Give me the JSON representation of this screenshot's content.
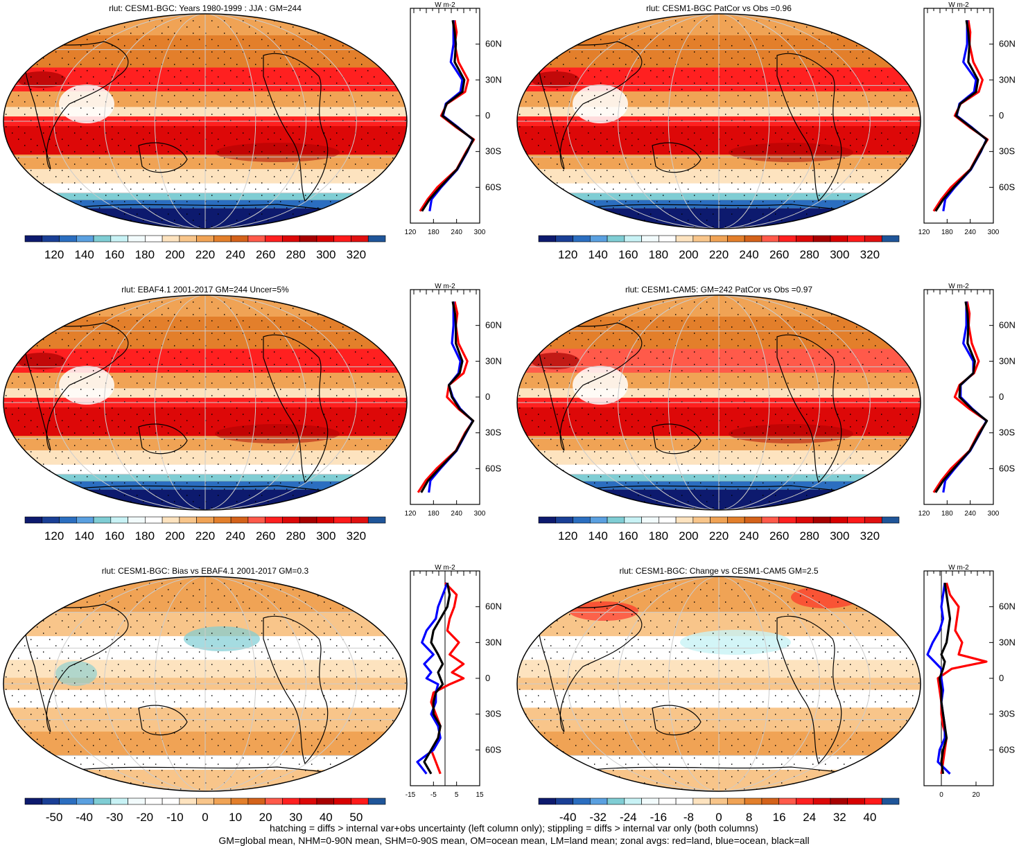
{
  "chart_data": [
    {
      "type": "heatmap",
      "title": "rlut: CESM1-BGC: Years 1980-1999 : JJA : GM=244",
      "colorbar": {
        "ticks": [
          "120",
          "140",
          "160",
          "180",
          "200",
          "220",
          "240",
          "260",
          "280",
          "300",
          "320"
        ],
        "scale": "abs"
      },
      "zonal": {
        "units": "W m-2",
        "xticks": [
          "120",
          "180",
          "240",
          "300"
        ],
        "xlim": [
          120,
          300
        ],
        "lat_labels": [
          "60N",
          "30N",
          "0",
          "30S",
          "60S"
        ],
        "series": [
          {
            "name": "land",
            "color": "#ff0000",
            "lat": [
              80,
              70,
              60,
              45,
              30,
              20,
              10,
              0,
              -10,
              -20,
              -30,
              -45,
              -60,
              -70,
              -80
            ],
            "values": [
              235,
              240,
              235,
              245,
              270,
              262,
              215,
              200,
              240,
              285,
              265,
              240,
              190,
              165,
              145
            ]
          },
          {
            "name": "ocean",
            "color": "#0000ff",
            "lat": [
              80,
              70,
              60,
              45,
              30,
              20,
              10,
              0,
              -10,
              -20,
              -30,
              -45,
              -60,
              -70,
              -80
            ],
            "values": [
              232,
              232,
              232,
              225,
              255,
              250,
              212,
              205,
              245,
              282,
              268,
              242,
              200,
              175,
              170
            ]
          },
          {
            "name": "all",
            "color": "#000000",
            "lat": [
              80,
              70,
              60,
              45,
              30,
              20,
              10,
              0,
              -10,
              -20,
              -30,
              -45,
              -60,
              -70,
              -80
            ],
            "values": [
              230,
              235,
              238,
              235,
              260,
              255,
              214,
              203,
              243,
              283,
              267,
              241,
              197,
              170,
              150
            ]
          }
        ]
      }
    },
    {
      "type": "heatmap",
      "title": "rlut: CESM1-BGC PatCor vs Obs =0.96",
      "colorbar": {
        "ticks": [
          "120",
          "140",
          "160",
          "180",
          "200",
          "220",
          "240",
          "260",
          "280",
          "300",
          "320"
        ],
        "scale": "abs"
      },
      "zonal": {
        "units": "W m-2",
        "xticks": [
          "120",
          "180",
          "240",
          "300"
        ],
        "xlim": [
          120,
          300
        ],
        "lat_labels": [
          "60N",
          "30N",
          "0",
          "30S",
          "60S"
        ],
        "series": [
          {
            "name": "land",
            "color": "#ff0000",
            "lat": [
              80,
              70,
              60,
              45,
              30,
              20,
              10,
              0,
              -10,
              -20,
              -30,
              -45,
              -60,
              -70,
              -80
            ],
            "values": [
              235,
              240,
              238,
              248,
              272,
              262,
              215,
              200,
              240,
              285,
              265,
              240,
              190,
              165,
              145
            ]
          },
          {
            "name": "ocean",
            "color": "#0000ff",
            "lat": [
              80,
              70,
              60,
              45,
              30,
              20,
              10,
              0,
              -10,
              -20,
              -30,
              -45,
              -60,
              -70,
              -80
            ],
            "values": [
              232,
              232,
              232,
              222,
              255,
              250,
              212,
              205,
              245,
              282,
              268,
              242,
              200,
              175,
              170
            ]
          },
          {
            "name": "all",
            "color": "#000000",
            "lat": [
              80,
              70,
              60,
              45,
              30,
              20,
              10,
              0,
              -10,
              -20,
              -30,
              -45,
              -60,
              -70,
              -80
            ],
            "values": [
              230,
              235,
              238,
              235,
              260,
              255,
              214,
              203,
              243,
              283,
              267,
              241,
              197,
              170,
              150
            ]
          }
        ]
      }
    },
    {
      "type": "heatmap",
      "title": "rlut: EBAF4.1 2001-2017 GM=244 Uncer=5%",
      "colorbar": {
        "ticks": [
          "120",
          "140",
          "160",
          "180",
          "200",
          "220",
          "240",
          "260",
          "280",
          "300",
          "320"
        ],
        "scale": "abs"
      },
      "zonal": {
        "units": "W m-2",
        "xticks": [
          "120",
          "180",
          "240",
          "300"
        ],
        "xlim": [
          120,
          300
        ],
        "lat_labels": [
          "60N",
          "30N",
          "0",
          "30S",
          "60S"
        ],
        "series": [
          {
            "name": "land",
            "color": "#ff0000",
            "lat": [
              80,
              70,
              60,
              45,
              30,
              20,
              10,
              0,
              -10,
              -20,
              -30,
              -45,
              -60,
              -70,
              -80
            ],
            "values": [
              235,
              242,
              238,
              245,
              268,
              258,
              220,
              215,
              245,
              283,
              262,
              238,
              188,
              160,
              140
            ]
          },
          {
            "name": "ocean",
            "color": "#0000ff",
            "lat": [
              80,
              70,
              60,
              45,
              30,
              20,
              10,
              0,
              -10,
              -20,
              -30,
              -45,
              -60,
              -70,
              -80
            ],
            "values": [
              232,
              232,
              232,
              228,
              250,
              245,
              220,
              230,
              250,
              282,
              265,
              240,
              198,
              172,
              168
            ]
          },
          {
            "name": "all",
            "color": "#000000",
            "lat": [
              80,
              70,
              60,
              45,
              30,
              20,
              10,
              0,
              -10,
              -20,
              -30,
              -45,
              -60,
              -70,
              -80
            ],
            "values": [
              230,
              236,
              238,
              238,
              255,
              248,
              220,
              228,
              248,
              283,
              264,
              239,
              195,
              166,
              148
            ]
          }
        ]
      }
    },
    {
      "type": "heatmap",
      "title": "rlut: CESM1-CAM5: GM=242 PatCor vs Obs =0.97",
      "colorbar": {
        "ticks": [
          "120",
          "140",
          "160",
          "180",
          "200",
          "220",
          "240",
          "260",
          "280",
          "300",
          "320"
        ],
        "scale": "abs"
      },
      "zonal": {
        "units": "W m-2",
        "xticks": [
          "120",
          "180",
          "240",
          "300"
        ],
        "xlim": [
          120,
          300
        ],
        "lat_labels": [
          "60N",
          "30N",
          "0",
          "30S",
          "60S"
        ],
        "series": [
          {
            "name": "land",
            "color": "#ff0000",
            "lat": [
              80,
              70,
              60,
              45,
              30,
              20,
              10,
              0,
              -10,
              -20,
              -30,
              -45,
              -60,
              -70,
              -80
            ],
            "values": [
              232,
              238,
              236,
              244,
              262,
              250,
              212,
              200,
              238,
              283,
              262,
              238,
              190,
              165,
              145
            ]
          },
          {
            "name": "ocean",
            "color": "#0000ff",
            "lat": [
              80,
              70,
              60,
              45,
              30,
              20,
              10,
              0,
              -10,
              -20,
              -30,
              -45,
              -60,
              -70,
              -80
            ],
            "values": [
              230,
              230,
              230,
              222,
              248,
              248,
              215,
              215,
              246,
              282,
              266,
              240,
              200,
              175,
              170
            ]
          },
          {
            "name": "all",
            "color": "#000000",
            "lat": [
              80,
              70,
              60,
              45,
              30,
              20,
              10,
              0,
              -10,
              -20,
              -30,
              -45,
              -60,
              -70,
              -80
            ],
            "values": [
              228,
              233,
              235,
              233,
              252,
              248,
              214,
              212,
              244,
              283,
              265,
              239,
              197,
              170,
              150
            ]
          }
        ]
      }
    },
    {
      "type": "heatmap",
      "title": "rlut: CESM1-BGC: Bias vs EBAF4.1 2001-2017 GM=0.3",
      "colorbar": {
        "ticks": [
          "-50",
          "-40",
          "-30",
          "-20",
          "-10",
          "0",
          "10",
          "20",
          "30",
          "40",
          "50"
        ],
        "scale": "diff"
      },
      "zonal": {
        "units": "W m-2",
        "xticks": [
          "-15",
          "-5",
          "5",
          "15"
        ],
        "xlim": [
          -15,
          15
        ],
        "lat_labels": [
          "60N",
          "30N",
          "0",
          "30S",
          "60S"
        ],
        "series": [
          {
            "name": "land",
            "color": "#ff0000",
            "lat": [
              80,
              70,
              60,
              50,
              40,
              30,
              20,
              12,
              5,
              0,
              -5,
              -12,
              -20,
              -30,
              -40,
              -50,
              -60,
              -70,
              -80
            ],
            "values": [
              0,
              5,
              4,
              2,
              1,
              6,
              2,
              8,
              3,
              8,
              2,
              -5,
              -6,
              -4,
              -2,
              -3,
              -6,
              -4,
              -2
            ]
          },
          {
            "name": "ocean",
            "color": "#0000ff",
            "lat": [
              80,
              70,
              60,
              50,
              40,
              30,
              20,
              12,
              5,
              0,
              -5,
              -12,
              -20,
              -30,
              -40,
              -50,
              -60,
              -70,
              -80
            ],
            "values": [
              1,
              -1,
              -3,
              -4,
              -8,
              -10,
              -5,
              -9,
              -6,
              -8,
              -3,
              -4,
              -4,
              -6,
              -3,
              -2,
              -5,
              -12,
              -8
            ]
          },
          {
            "name": "all",
            "color": "#000000",
            "lat": [
              80,
              70,
              60,
              50,
              40,
              30,
              20,
              12,
              5,
              0,
              -5,
              -12,
              -20,
              -30,
              -40,
              -50,
              -60,
              -70,
              -80
            ],
            "values": [
              1,
              2,
              1,
              -2,
              -5,
              -6,
              -3,
              -1,
              -3,
              -2,
              -1,
              -4,
              -5,
              -5,
              -2,
              -3,
              -6,
              -9,
              -6
            ]
          }
        ]
      }
    },
    {
      "type": "heatmap",
      "title": "rlut: CESM1-BGC: Change vs CESM1-CAM5 GM=2.5",
      "colorbar": {
        "ticks": [
          "-40",
          "-32",
          "-24",
          "-16",
          "-8",
          "0",
          "8",
          "16",
          "24",
          "32",
          "40"
        ],
        "scale": "diff"
      },
      "zonal": {
        "units": "W m-2",
        "xticks": [
          "0",
          "20"
        ],
        "xlim": [
          -10,
          30
        ],
        "lat_labels": [
          "60N",
          "30N",
          "0",
          "30S",
          "60S"
        ],
        "series": [
          {
            "name": "land",
            "color": "#ff0000",
            "lat": [
              80,
              70,
              60,
              50,
              40,
              30,
              20,
              14,
              8,
              0,
              -10,
              -20,
              -30,
              -40,
              -50,
              -60,
              -70,
              -80
            ],
            "values": [
              3,
              5,
              10,
              9,
              8,
              12,
              10,
              26,
              6,
              -2,
              -1,
              0,
              0,
              1,
              3,
              2,
              1,
              0
            ]
          },
          {
            "name": "ocean",
            "color": "#0000ff",
            "lat": [
              80,
              70,
              60,
              50,
              40,
              30,
              20,
              14,
              8,
              0,
              -10,
              -20,
              -30,
              -40,
              -50,
              -60,
              -70,
              -80
            ],
            "values": [
              2,
              1,
              0,
              1,
              -1,
              -5,
              -8,
              -4,
              0,
              0,
              1,
              0,
              1,
              2,
              2,
              -1,
              -2,
              5
            ]
          },
          {
            "name": "all",
            "color": "#000000",
            "lat": [
              80,
              70,
              60,
              50,
              40,
              30,
              20,
              14,
              8,
              0,
              -10,
              -20,
              -30,
              -40,
              -50,
              -60,
              -70,
              -80
            ],
            "values": [
              2,
              3,
              4,
              5,
              4,
              3,
              0,
              2,
              1,
              -1,
              0,
              0,
              1,
              2,
              3,
              1,
              0,
              1
            ]
          }
        ]
      }
    }
  ],
  "footer": {
    "line1": "hatching = diffs > internal var+obs uncertainty (left column only); stippling = diffs > internal var only (both columns)",
    "line2": "GM=global mean, NHM=0-90N mean, SHM=0-90S mean, OM=ocean mean, LM=land mean; zonal avgs: red=land, blue=ocean, black=all"
  },
  "palette": {
    "abs": [
      "#0d1a6e",
      "#1a3f96",
      "#2b6ec0",
      "#5aa0e0",
      "#7fcdd4",
      "#c8f2f5",
      "#f2fbfc",
      "#ffffff",
      "#fde3bf",
      "#f8c58a",
      "#f0a355",
      "#e37f2b",
      "#d4621a",
      "#ff5a4a",
      "#ff2020",
      "#dd0808",
      "#a80000",
      "#d80000",
      "#ff1a1a",
      "#e01010",
      "#1f5599"
    ],
    "diff": [
      "#0d1a6e",
      "#1a3f96",
      "#2b6ec0",
      "#5aa0e0",
      "#7fcdd4",
      "#c8f2f5",
      "#f2fbfc",
      "#ffffff",
      "#ffffff",
      "#fde3bf",
      "#f8c58a",
      "#f0a355",
      "#e37f2b",
      "#d4621a",
      "#ff5a4a",
      "#ff2020",
      "#dd0808",
      "#a80000",
      "#d80000",
      "#ff1a1a",
      "#1f5599"
    ]
  }
}
